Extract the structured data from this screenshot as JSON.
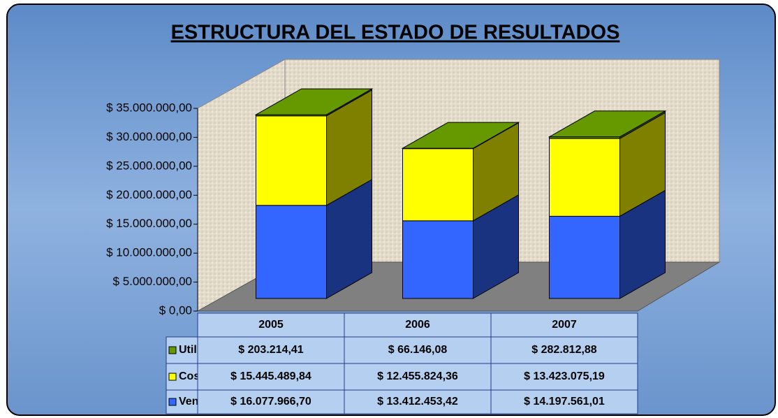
{
  "chart_data": {
    "type": "bar",
    "stacked": true,
    "three_d": true,
    "title": "ESTRUCTURA DEL ESTADO DE RESULTADOS",
    "categories": [
      "2005",
      "2006",
      "2007"
    ],
    "series": [
      {
        "name": "Ventas",
        "color": "#3366ff",
        "values": [
          16077966.7,
          13412453.42,
          14197561.01
        ],
        "value_labels": [
          "$ 16.077.966,70",
          "$ 13.412.453,42",
          "$ 14.197.561,01"
        ]
      },
      {
        "name": "Costo de Venta",
        "color": "#ffff00",
        "values": [
          15445489.84,
          12455824.36,
          13423075.19
        ],
        "value_labels": [
          "$ 15.445.489,84",
          "$ 12.455.824,36",
          "$ 13.423.075,19"
        ]
      },
      {
        "name": "Utilidad Neta",
        "color": "#669900",
        "values": [
          203214.41,
          66146.08,
          282812.88
        ],
        "value_labels": [
          "$ 203.214,41",
          "$ 66.146,08",
          "$ 282.812,88"
        ]
      }
    ],
    "ylim": [
      0,
      35000000
    ],
    "yticks": [
      {
        "value": 0,
        "label": "$ 0,00"
      },
      {
        "value": 5000000,
        "label": "$ 5.000.000,00"
      },
      {
        "value": 10000000,
        "label": "$ 10.000.000,00"
      },
      {
        "value": 15000000,
        "label": "$ 15.000.000,00"
      },
      {
        "value": 20000000,
        "label": "$ 20.000.000,00"
      },
      {
        "value": 25000000,
        "label": "$ 25.000.000,00"
      },
      {
        "value": 30000000,
        "label": "$ 30.000.000,00"
      },
      {
        "value": 35000000,
        "label": "$ 35.000.000,00"
      }
    ],
    "data_table": true
  }
}
